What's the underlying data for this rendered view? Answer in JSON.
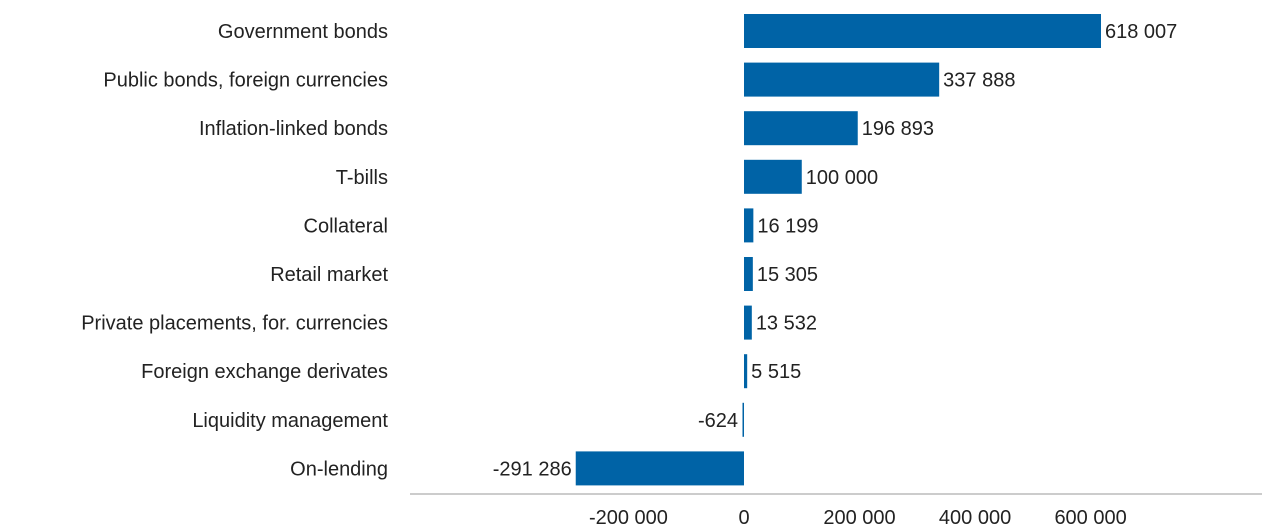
{
  "chart_data": {
    "type": "bar",
    "orientation": "horizontal",
    "title": "",
    "xlabel": "",
    "ylabel": "",
    "categories": [
      "Government bonds",
      "Public bonds, foreign currencies",
      "Inflation-linked bonds",
      "T-bills",
      "Collateral",
      "Retail market",
      "Private placements, for. currencies",
      "Foreign exchange derivates",
      "Liquidity management",
      "On-lending"
    ],
    "values": [
      618007,
      337888,
      196893,
      100000,
      16199,
      15305,
      13532,
      5515,
      -624,
      -291286
    ],
    "value_labels": [
      "618 007",
      "337 888",
      "196 893",
      "100 000",
      "16 199",
      "15 305",
      "13 532",
      "5 515",
      "-624",
      "-291 286"
    ],
    "xlim": [
      -300000,
      800000
    ],
    "x_ticks": [
      -200000,
      0,
      200000,
      400000,
      600000
    ],
    "x_tick_labels": [
      "-200 000",
      "0",
      "200 000",
      "400 000",
      "600 000"
    ],
    "bar_color": "#0063A6",
    "axis_color": "#9a9a9a",
    "grid": false,
    "legend": "none"
  }
}
